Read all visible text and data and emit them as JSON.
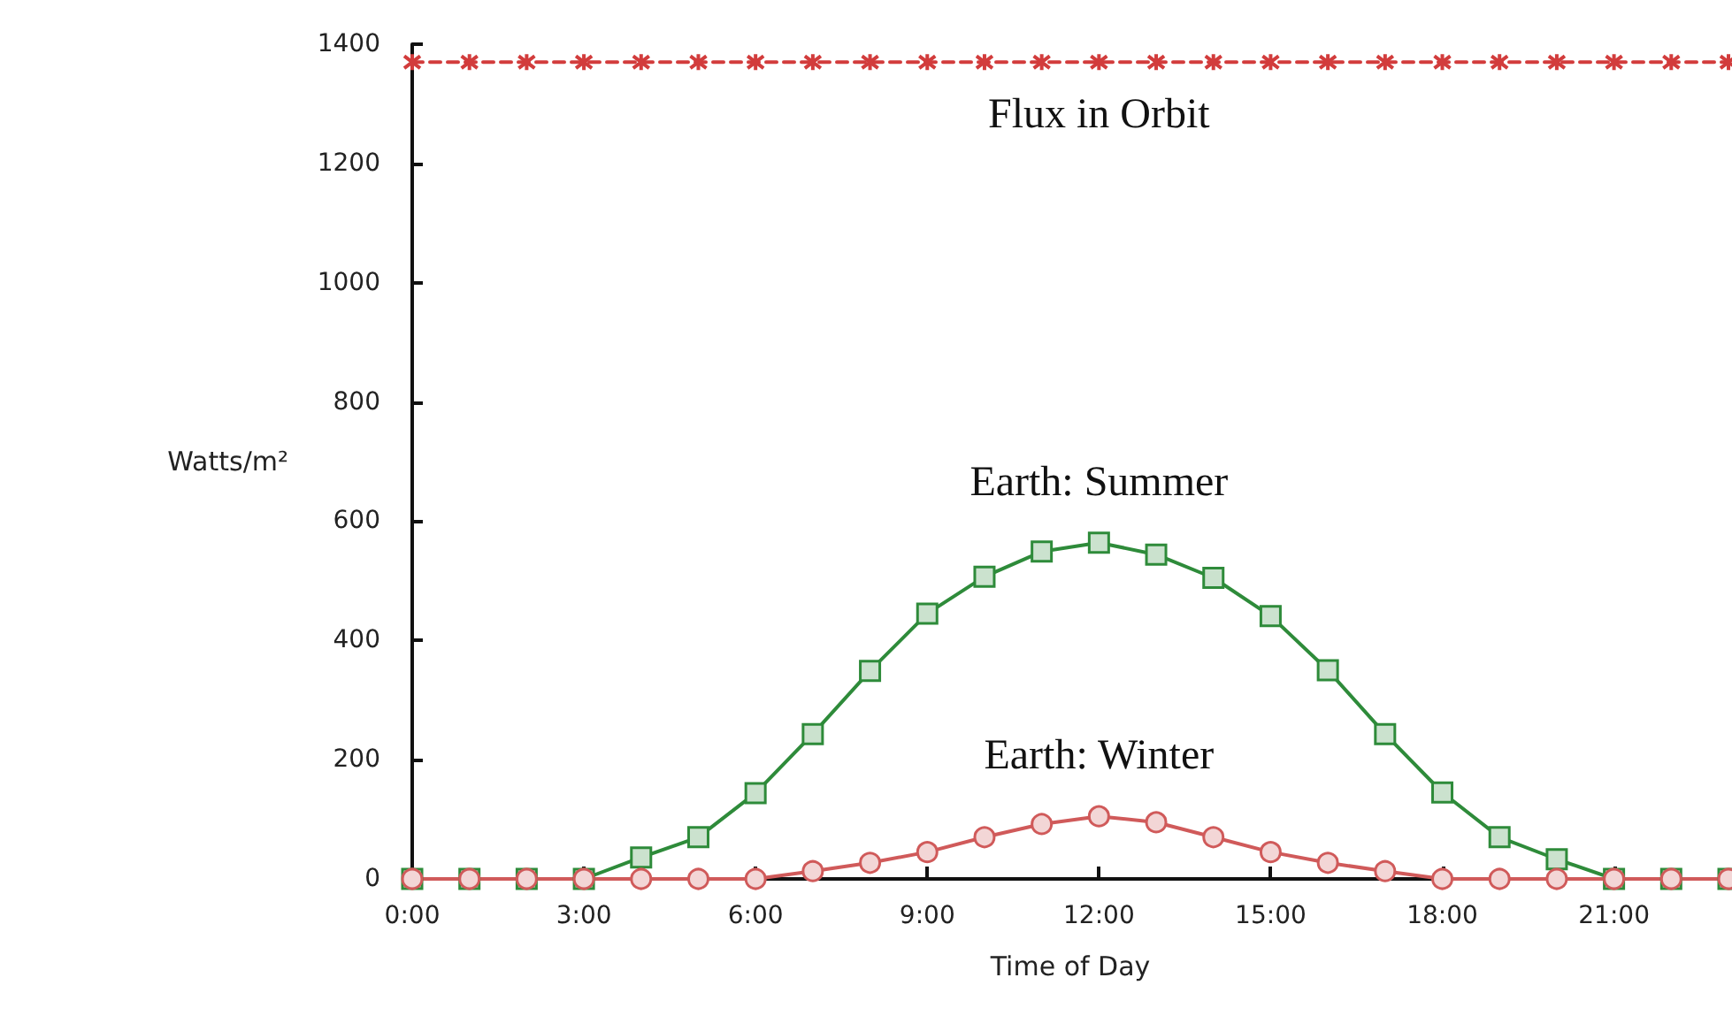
{
  "chart_data": {
    "type": "line",
    "xlabel": "Time of Day",
    "ylabel": "Watts/m²",
    "x": [
      0,
      1,
      2,
      3,
      4,
      5,
      6,
      7,
      8,
      9,
      10,
      11,
      12,
      13,
      14,
      15,
      16,
      17,
      18,
      19,
      20,
      21,
      22,
      23
    ],
    "xlim": [
      0,
      23
    ],
    "xticks": [
      {
        "value": 0,
        "label": "0:00"
      },
      {
        "value": 3,
        "label": "3:00"
      },
      {
        "value": 6,
        "label": "6:00"
      },
      {
        "value": 9,
        "label": "9:00"
      },
      {
        "value": 12,
        "label": "12:00"
      },
      {
        "value": 15,
        "label": "15:00"
      },
      {
        "value": 18,
        "label": "18:00"
      },
      {
        "value": 21,
        "label": "21:00"
      }
    ],
    "ylim": [
      0,
      1400
    ],
    "yticks": [
      0,
      200,
      400,
      600,
      800,
      1000,
      1200,
      1400
    ],
    "grid": false,
    "legend": false,
    "series": [
      {
        "name": "Flux in Orbit",
        "color": "#d23c3c",
        "marker": "cross",
        "line_style": "dashed",
        "values": [
          1370,
          1370,
          1370,
          1370,
          1370,
          1370,
          1370,
          1370,
          1370,
          1370,
          1370,
          1370,
          1370,
          1370,
          1370,
          1370,
          1370,
          1370,
          1370,
          1370,
          1370,
          1370,
          1370,
          1370
        ]
      },
      {
        "name": "Earth: Summer",
        "color": "#2e8b3a",
        "marker": "square",
        "line_style": "solid",
        "values": [
          0,
          0,
          0,
          0,
          36,
          70,
          144,
          243,
          349,
          445,
          507,
          549,
          564,
          544,
          505,
          441,
          350,
          243,
          145,
          70,
          33,
          0,
          0,
          0
        ]
      },
      {
        "name": "Earth: Winter",
        "color": "#d05a5a",
        "marker": "circle",
        "line_style": "solid",
        "values": [
          0,
          0,
          0,
          0,
          0,
          0,
          0,
          13,
          27,
          45,
          70,
          92,
          105,
          95,
          70,
          45,
          27,
          13,
          0,
          0,
          0,
          0,
          0,
          0
        ]
      }
    ]
  }
}
